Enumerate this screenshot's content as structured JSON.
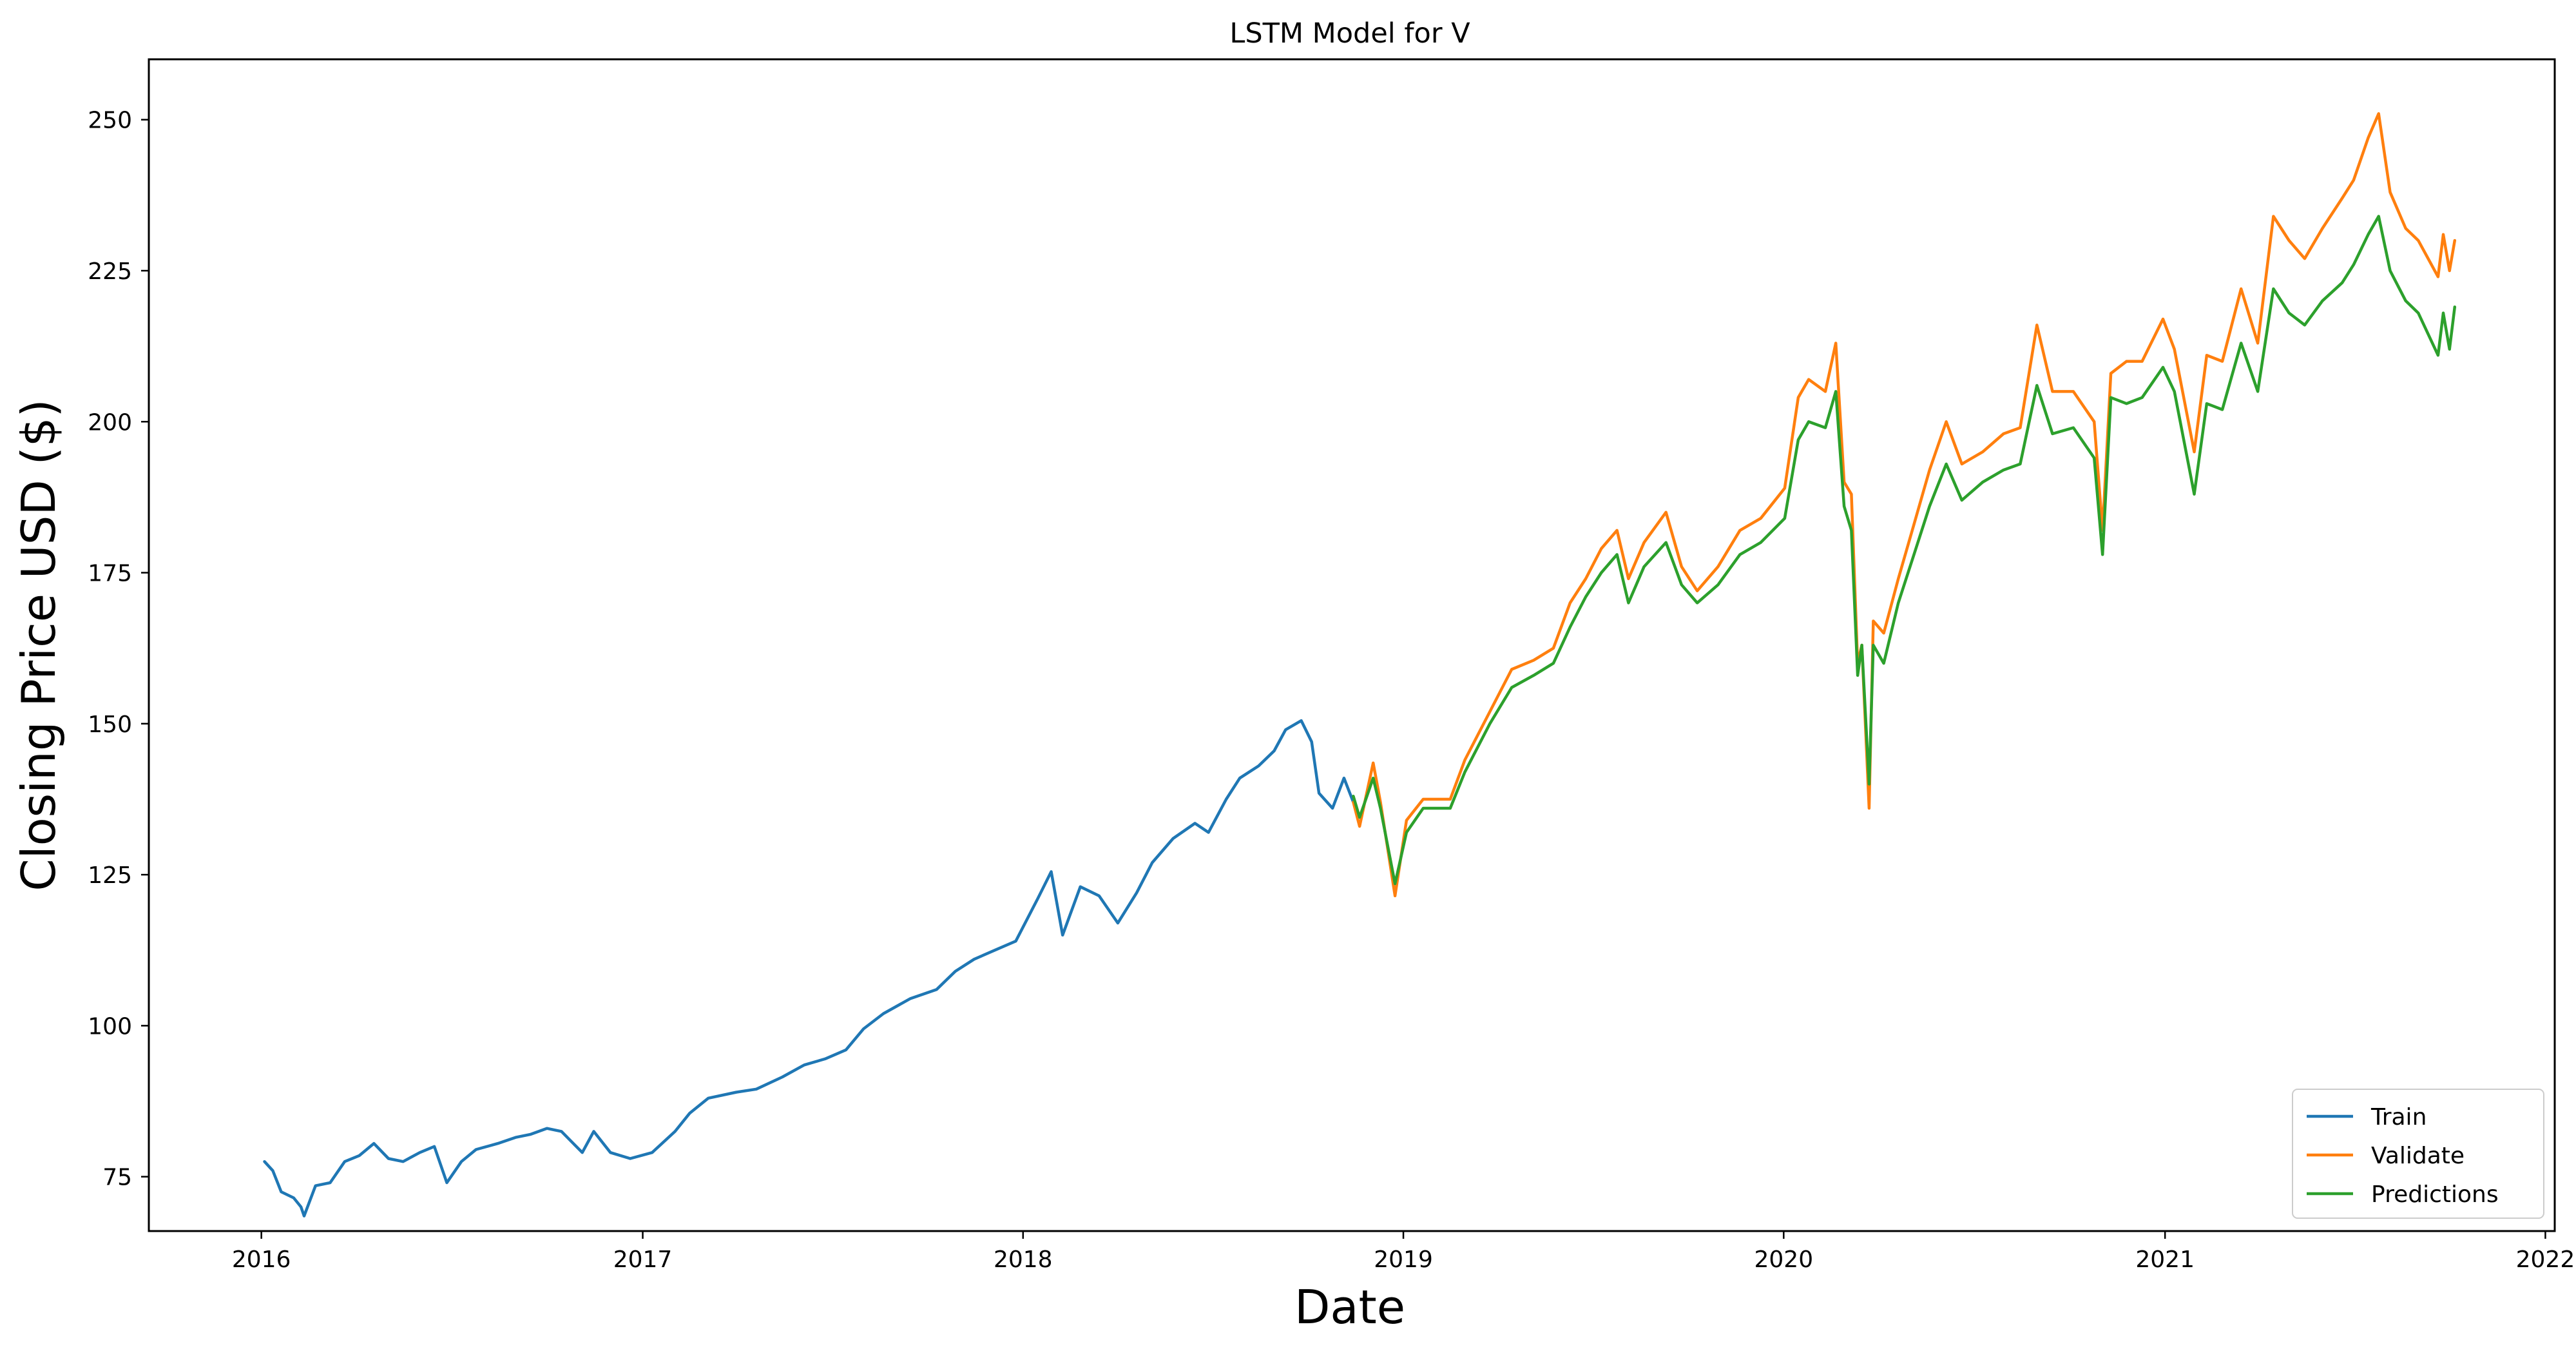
{
  "chart_data": {
    "type": "line",
    "title": "LSTM Model for V",
    "xlabel": "Date",
    "ylabel": "Closing Price USD ($)",
    "xlim": [
      "2015-09-15",
      "2022-01-10"
    ],
    "ylim": [
      66,
      260
    ],
    "x_ticks": [
      "2016",
      "2017",
      "2018",
      "2019",
      "2020",
      "2021",
      "2022"
    ],
    "y_ticks": [
      75,
      100,
      125,
      150,
      175,
      200,
      225,
      250
    ],
    "grid": false,
    "legend_position": "lower-right",
    "series": [
      {
        "name": "Train",
        "color": "#1f77b4",
        "points": [
          [
            "2016-01-04",
            77.5
          ],
          [
            "2016-01-12",
            76.0
          ],
          [
            "2016-01-20",
            72.5
          ],
          [
            "2016-02-01",
            71.5
          ],
          [
            "2016-02-08",
            70.0
          ],
          [
            "2016-02-11",
            68.5
          ],
          [
            "2016-02-22",
            73.5
          ],
          [
            "2016-03-07",
            74.0
          ],
          [
            "2016-03-21",
            77.5
          ],
          [
            "2016-04-04",
            78.5
          ],
          [
            "2016-04-18",
            80.5
          ],
          [
            "2016-05-02",
            78.0
          ],
          [
            "2016-05-16",
            77.5
          ],
          [
            "2016-06-01",
            79.0
          ],
          [
            "2016-06-15",
            80.0
          ],
          [
            "2016-06-27",
            74.0
          ],
          [
            "2016-07-11",
            77.5
          ],
          [
            "2016-07-25",
            79.5
          ],
          [
            "2016-08-15",
            80.5
          ],
          [
            "2016-09-01",
            81.5
          ],
          [
            "2016-09-15",
            82.0
          ],
          [
            "2016-10-01",
            83.0
          ],
          [
            "2016-10-15",
            82.5
          ],
          [
            "2016-11-04",
            79.0
          ],
          [
            "2016-11-15",
            82.5
          ],
          [
            "2016-12-01",
            79.0
          ],
          [
            "2016-12-20",
            78.0
          ],
          [
            "2017-01-10",
            79.0
          ],
          [
            "2017-02-01",
            82.5
          ],
          [
            "2017-02-15",
            85.5
          ],
          [
            "2017-03-05",
            88.0
          ],
          [
            "2017-04-01",
            89.0
          ],
          [
            "2017-04-20",
            89.5
          ],
          [
            "2017-05-15",
            91.5
          ],
          [
            "2017-06-05",
            93.5
          ],
          [
            "2017-06-25",
            94.5
          ],
          [
            "2017-07-15",
            96.0
          ],
          [
            "2017-08-01",
            99.5
          ],
          [
            "2017-08-20",
            102.0
          ],
          [
            "2017-09-15",
            104.5
          ],
          [
            "2017-10-10",
            106.0
          ],
          [
            "2017-10-28",
            109.0
          ],
          [
            "2017-11-15",
            111.0
          ],
          [
            "2017-12-05",
            112.5
          ],
          [
            "2017-12-25",
            114.0
          ],
          [
            "2018-01-15",
            121.0
          ],
          [
            "2018-01-28",
            125.5
          ],
          [
            "2018-02-08",
            115.0
          ],
          [
            "2018-02-25",
            123.0
          ],
          [
            "2018-03-15",
            121.5
          ],
          [
            "2018-04-02",
            117.0
          ],
          [
            "2018-04-20",
            122.0
          ],
          [
            "2018-05-05",
            127.0
          ],
          [
            "2018-05-25",
            131.0
          ],
          [
            "2018-06-15",
            133.5
          ],
          [
            "2018-06-28",
            132.0
          ],
          [
            "2018-07-15",
            137.5
          ],
          [
            "2018-07-28",
            141.0
          ],
          [
            "2018-08-15",
            143.0
          ],
          [
            "2018-08-30",
            145.5
          ],
          [
            "2018-09-10",
            149.0
          ],
          [
            "2018-09-25",
            150.5
          ],
          [
            "2018-10-05",
            147.0
          ],
          [
            "2018-10-12",
            138.5
          ],
          [
            "2018-10-25",
            136.0
          ],
          [
            "2018-11-05",
            141.0
          ],
          [
            "2018-11-14",
            137.0
          ]
        ]
      },
      {
        "name": "Validate",
        "color": "#ff7f0e",
        "points": [
          [
            "2018-11-14",
            137.0
          ],
          [
            "2018-11-20",
            133.0
          ],
          [
            "2018-12-03",
            143.5
          ],
          [
            "2018-12-10",
            137.0
          ],
          [
            "2018-12-24",
            121.5
          ],
          [
            "2019-01-04",
            134.0
          ],
          [
            "2019-01-20",
            137.5
          ],
          [
            "2019-02-15",
            137.5
          ],
          [
            "2019-03-01",
            144.0
          ],
          [
            "2019-03-25",
            152.0
          ],
          [
            "2019-04-15",
            159.0
          ],
          [
            "2019-05-06",
            160.5
          ],
          [
            "2019-05-25",
            162.5
          ],
          [
            "2019-06-10",
            170.0
          ],
          [
            "2019-06-25",
            174.0
          ],
          [
            "2019-07-10",
            179.0
          ],
          [
            "2019-07-25",
            182.0
          ],
          [
            "2019-08-05",
            174.0
          ],
          [
            "2019-08-20",
            180.0
          ],
          [
            "2019-09-10",
            185.0
          ],
          [
            "2019-09-25",
            176.0
          ],
          [
            "2019-10-10",
            172.0
          ],
          [
            "2019-10-30",
            176.0
          ],
          [
            "2019-11-20",
            182.0
          ],
          [
            "2019-12-10",
            184.0
          ],
          [
            "2020-01-02",
            189.0
          ],
          [
            "2020-01-15",
            204.0
          ],
          [
            "2020-01-25",
            207.0
          ],
          [
            "2020-02-10",
            205.0
          ],
          [
            "2020-02-20",
            213.0
          ],
          [
            "2020-02-28",
            190.0
          ],
          [
            "2020-03-06",
            188.0
          ],
          [
            "2020-03-12",
            160.0
          ],
          [
            "2020-03-16",
            163.0
          ],
          [
            "2020-03-23",
            136.0
          ],
          [
            "2020-03-27",
            167.0
          ],
          [
            "2020-04-06",
            165.0
          ],
          [
            "2020-04-20",
            174.0
          ],
          [
            "2020-05-05",
            183.0
          ],
          [
            "2020-05-20",
            192.0
          ],
          [
            "2020-06-05",
            200.0
          ],
          [
            "2020-06-20",
            193.0
          ],
          [
            "2020-07-10",
            195.0
          ],
          [
            "2020-07-30",
            198.0
          ],
          [
            "2020-08-15",
            199.0
          ],
          [
            "2020-08-31",
            216.0
          ],
          [
            "2020-09-15",
            205.0
          ],
          [
            "2020-10-05",
            205.0
          ],
          [
            "2020-10-25",
            200.0
          ],
          [
            "2020-11-02",
            182.0
          ],
          [
            "2020-11-10",
            208.0
          ],
          [
            "2020-11-25",
            210.0
          ],
          [
            "2020-12-10",
            210.0
          ],
          [
            "2020-12-30",
            217.0
          ],
          [
            "2021-01-10",
            212.0
          ],
          [
            "2021-01-29",
            195.0
          ],
          [
            "2021-02-10",
            211.0
          ],
          [
            "2021-02-25",
            210.0
          ],
          [
            "2021-03-15",
            222.0
          ],
          [
            "2021-03-31",
            213.0
          ],
          [
            "2021-04-15",
            234.0
          ],
          [
            "2021-04-30",
            230.0
          ],
          [
            "2021-05-15",
            227.0
          ],
          [
            "2021-06-01",
            232.0
          ],
          [
            "2021-06-20",
            237.0
          ],
          [
            "2021-07-01",
            240.0
          ],
          [
            "2021-07-15",
            247.0
          ],
          [
            "2021-07-25",
            251.0
          ],
          [
            "2021-08-05",
            238.0
          ],
          [
            "2021-08-20",
            232.0
          ],
          [
            "2021-09-01",
            230.0
          ],
          [
            "2021-09-20",
            224.0
          ],
          [
            "2021-09-25",
            231.0
          ],
          [
            "2021-10-01",
            225.0
          ],
          [
            "2021-10-06",
            230.0
          ]
        ]
      },
      {
        "name": "Predictions",
        "color": "#2ca02c",
        "points": [
          [
            "2018-11-14",
            138.0
          ],
          [
            "2018-11-20",
            134.5
          ],
          [
            "2018-12-03",
            141.0
          ],
          [
            "2018-12-10",
            136.0
          ],
          [
            "2018-12-24",
            123.5
          ],
          [
            "2019-01-04",
            132.0
          ],
          [
            "2019-01-20",
            136.0
          ],
          [
            "2019-02-15",
            136.0
          ],
          [
            "2019-03-01",
            142.0
          ],
          [
            "2019-03-25",
            150.0
          ],
          [
            "2019-04-15",
            156.0
          ],
          [
            "2019-05-06",
            158.0
          ],
          [
            "2019-05-25",
            160.0
          ],
          [
            "2019-06-10",
            166.0
          ],
          [
            "2019-06-25",
            171.0
          ],
          [
            "2019-07-10",
            175.0
          ],
          [
            "2019-07-25",
            178.0
          ],
          [
            "2019-08-05",
            170.0
          ],
          [
            "2019-08-20",
            176.0
          ],
          [
            "2019-09-10",
            180.0
          ],
          [
            "2019-09-25",
            173.0
          ],
          [
            "2019-10-10",
            170.0
          ],
          [
            "2019-10-30",
            173.0
          ],
          [
            "2019-11-20",
            178.0
          ],
          [
            "2019-12-10",
            180.0
          ],
          [
            "2020-01-02",
            184.0
          ],
          [
            "2020-01-15",
            197.0
          ],
          [
            "2020-01-25",
            200.0
          ],
          [
            "2020-02-10",
            199.0
          ],
          [
            "2020-02-20",
            205.0
          ],
          [
            "2020-02-28",
            186.0
          ],
          [
            "2020-03-06",
            182.0
          ],
          [
            "2020-03-12",
            158.0
          ],
          [
            "2020-03-16",
            163.0
          ],
          [
            "2020-03-23",
            140.0
          ],
          [
            "2020-03-27",
            163.0
          ],
          [
            "2020-04-06",
            160.0
          ],
          [
            "2020-04-20",
            170.0
          ],
          [
            "2020-05-05",
            178.0
          ],
          [
            "2020-05-20",
            186.0
          ],
          [
            "2020-06-05",
            193.0
          ],
          [
            "2020-06-20",
            187.0
          ],
          [
            "2020-07-10",
            190.0
          ],
          [
            "2020-07-30",
            192.0
          ],
          [
            "2020-08-15",
            193.0
          ],
          [
            "2020-08-31",
            206.0
          ],
          [
            "2020-09-15",
            198.0
          ],
          [
            "2020-10-05",
            199.0
          ],
          [
            "2020-10-25",
            194.0
          ],
          [
            "2020-11-02",
            178.0
          ],
          [
            "2020-11-10",
            204.0
          ],
          [
            "2020-11-25",
            203.0
          ],
          [
            "2020-12-10",
            204.0
          ],
          [
            "2020-12-30",
            209.0
          ],
          [
            "2021-01-10",
            205.0
          ],
          [
            "2021-01-29",
            188.0
          ],
          [
            "2021-02-10",
            203.0
          ],
          [
            "2021-02-25",
            202.0
          ],
          [
            "2021-03-15",
            213.0
          ],
          [
            "2021-03-31",
            205.0
          ],
          [
            "2021-04-15",
            222.0
          ],
          [
            "2021-04-30",
            218.0
          ],
          [
            "2021-05-15",
            216.0
          ],
          [
            "2021-06-01",
            220.0
          ],
          [
            "2021-06-20",
            223.0
          ],
          [
            "2021-07-01",
            226.0
          ],
          [
            "2021-07-15",
            231.0
          ],
          [
            "2021-07-25",
            234.0
          ],
          [
            "2021-08-05",
            225.0
          ],
          [
            "2021-08-20",
            220.0
          ],
          [
            "2021-09-01",
            218.0
          ],
          [
            "2021-09-20",
            211.0
          ],
          [
            "2021-09-25",
            218.0
          ],
          [
            "2021-10-01",
            212.0
          ],
          [
            "2021-10-06",
            219.0
          ]
        ]
      }
    ]
  }
}
